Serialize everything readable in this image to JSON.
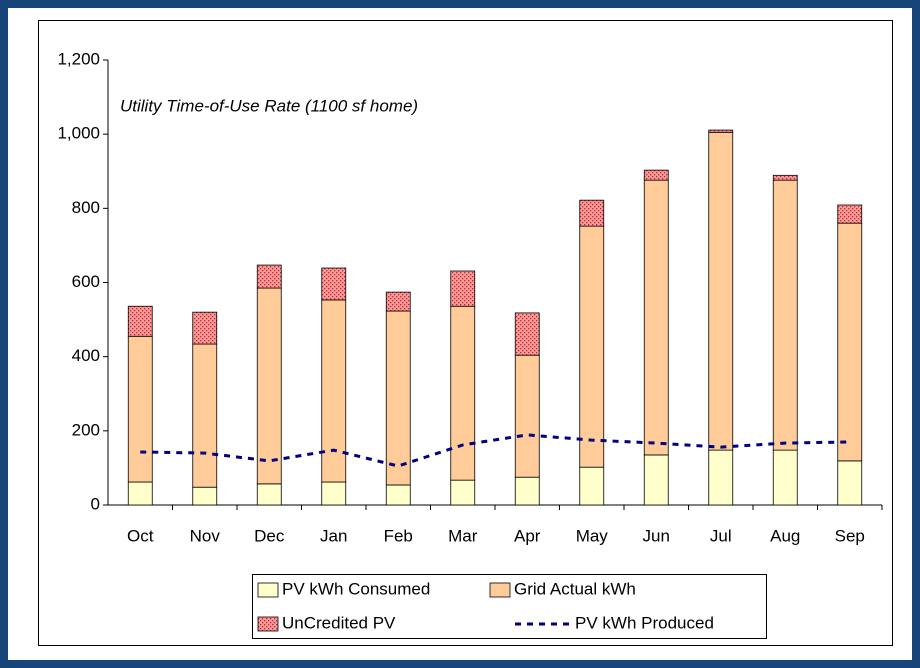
{
  "chart_data": {
    "type": "stacked_bar",
    "annotation": "Utility Time-of-Use Rate (1100 sf home)",
    "categories": [
      "Oct",
      "Nov",
      "Dec",
      "Jan",
      "Feb",
      "Mar",
      "Apr",
      "May",
      "Jun",
      "Jul",
      "Aug",
      "Sep"
    ],
    "series": [
      {
        "name": "PV kWh Consumed",
        "color": "#ffffcc",
        "values": [
          62,
          48,
          57,
          62,
          54,
          67,
          75,
          102,
          135,
          148,
          148,
          119
        ]
      },
      {
        "name": "Grid Actual kWh",
        "color": "#ffcc99",
        "values": [
          393,
          386,
          528,
          491,
          469,
          469,
          329,
          650,
          741,
          857,
          728,
          641
        ]
      },
      {
        "name": "UnCredited PV",
        "color": "#ff9999",
        "pattern": "dotted",
        "values": [
          81,
          86,
          62,
          86,
          51,
          95,
          114,
          70,
          27,
          6,
          13,
          49
        ]
      },
      {
        "name": "PV kWh Produced",
        "color": "#000080",
        "type": "line",
        "dashed": true,
        "values": [
          143,
          140,
          119,
          148,
          105,
          162,
          189,
          175,
          167,
          156,
          167,
          170
        ]
      }
    ],
    "ylim": [
      0,
      1200
    ],
    "yticks": [
      0,
      200,
      400,
      600,
      800,
      {
        "value": 1000,
        "label": "1,000"
      },
      {
        "value": 1200,
        "label": "1,200"
      }
    ],
    "grid": false,
    "legend": "bottom"
  }
}
